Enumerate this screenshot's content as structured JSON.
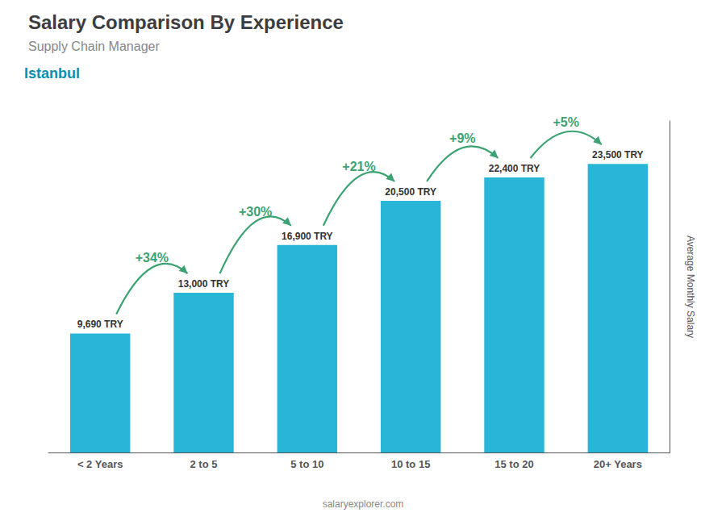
{
  "chart_data": {
    "type": "bar",
    "title": "Salary Comparison By Experience",
    "subtitle": "Supply Chain Manager",
    "annotations": [
      "Istanbul",
      "salaryexplorer.com"
    ],
    "ylabel": "Average Monthly Salary",
    "categories": [
      "< 2 Years",
      "2 to 5",
      "5 to 10",
      "10 to 15",
      "15 to 20",
      "20+ Years"
    ],
    "values": [
      9690,
      13000,
      16900,
      20500,
      22400,
      23500
    ],
    "value_labels": [
      "9,690 TRY",
      "13,000 TRY",
      "16,900 TRY",
      "20,500 TRY",
      "22,400 TRY",
      "23,500 TRY"
    ],
    "pct_labels": [
      "+34%",
      "+30%",
      "+21%",
      "+9%",
      "+5%"
    ],
    "color": "#29b6d6",
    "ylim": [
      0,
      27000
    ],
    "grid": false,
    "data_labels": true,
    "tick_labels": "x"
  }
}
